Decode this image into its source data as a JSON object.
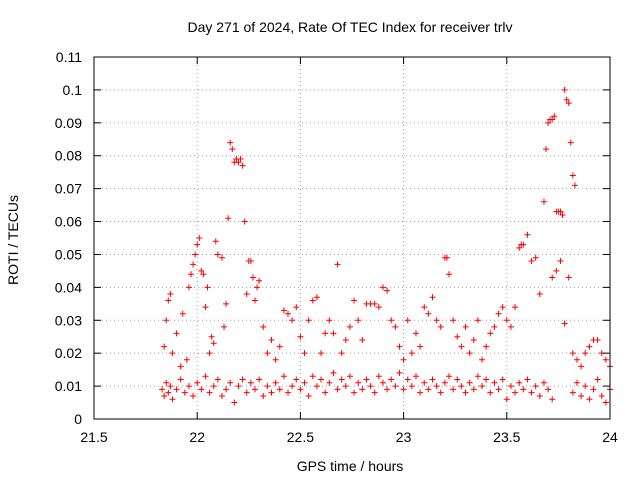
{
  "chart_data": {
    "type": "scatter",
    "title": "Day 271 of 2024, Rate Of TEC Index for receiver trlv",
    "xlabel": "GPS time / hours",
    "ylabel": "ROTI / TECUs",
    "xlim": [
      21.5,
      24
    ],
    "ylim": [
      0,
      0.11
    ],
    "x_ticks": [
      21.5,
      22,
      22.5,
      23,
      23.5,
      24
    ],
    "x_tick_labels": [
      "21.5",
      "22",
      "22.5",
      "23",
      "23.5",
      "24"
    ],
    "y_ticks": [
      0,
      0.01,
      0.02,
      0.03,
      0.04,
      0.05,
      0.06,
      0.07,
      0.08,
      0.09,
      0.1,
      0.11
    ],
    "y_tick_labels": [
      "0",
      "0.01",
      "0.02",
      "0.03",
      "0.04",
      "0.05",
      "0.06",
      "0.07",
      "0.08",
      "0.09",
      "0.1",
      "0.11"
    ],
    "grid": true,
    "marker": "+",
    "marker_color": "#ff0000",
    "series": [
      {
        "name": "ROTI",
        "points": [
          [
            21.83,
            0.009
          ],
          [
            21.84,
            0.007
          ],
          [
            21.85,
            0.011
          ],
          [
            21.86,
            0.008
          ],
          [
            21.87,
            0.01
          ],
          [
            21.88,
            0.006
          ],
          [
            21.9,
            0.009
          ],
          [
            21.92,
            0.012
          ],
          [
            21.94,
            0.008
          ],
          [
            21.96,
            0.01
          ],
          [
            21.98,
            0.007
          ],
          [
            22.0,
            0.011
          ],
          [
            22.02,
            0.009
          ],
          [
            22.04,
            0.013
          ],
          [
            22.06,
            0.008
          ],
          [
            22.08,
            0.01
          ],
          [
            22.1,
            0.012
          ],
          [
            22.12,
            0.007
          ],
          [
            22.14,
            0.009
          ],
          [
            22.16,
            0.011
          ],
          [
            22.18,
            0.005
          ],
          [
            22.2,
            0.01
          ],
          [
            22.22,
            0.012
          ],
          [
            22.24,
            0.008
          ],
          [
            22.26,
            0.011
          ],
          [
            22.28,
            0.009
          ],
          [
            22.3,
            0.012
          ],
          [
            22.32,
            0.007
          ],
          [
            22.34,
            0.01
          ],
          [
            22.36,
            0.008
          ],
          [
            22.38,
            0.011
          ],
          [
            22.4,
            0.009
          ],
          [
            22.42,
            0.013
          ],
          [
            22.44,
            0.008
          ],
          [
            22.46,
            0.01
          ],
          [
            22.48,
            0.012
          ],
          [
            22.5,
            0.009
          ],
          [
            22.52,
            0.011
          ],
          [
            22.54,
            0.007
          ],
          [
            22.56,
            0.013
          ],
          [
            22.58,
            0.01
          ],
          [
            22.6,
            0.012
          ],
          [
            22.62,
            0.008
          ],
          [
            22.64,
            0.011
          ],
          [
            22.66,
            0.014
          ],
          [
            22.68,
            0.009
          ],
          [
            22.7,
            0.012
          ],
          [
            22.72,
            0.01
          ],
          [
            22.74,
            0.013
          ],
          [
            22.76,
            0.008
          ],
          [
            22.78,
            0.011
          ],
          [
            22.8,
            0.009
          ],
          [
            22.82,
            0.012
          ],
          [
            22.84,
            0.01
          ],
          [
            22.86,
            0.008
          ],
          [
            22.88,
            0.013
          ],
          [
            22.9,
            0.011
          ],
          [
            22.92,
            0.009
          ],
          [
            22.94,
            0.012
          ],
          [
            22.96,
            0.01
          ],
          [
            22.98,
            0.014
          ],
          [
            23.0,
            0.009
          ],
          [
            23.02,
            0.012
          ],
          [
            23.04,
            0.01
          ],
          [
            23.06,
            0.013
          ],
          [
            23.08,
            0.008
          ],
          [
            23.1,
            0.011
          ],
          [
            23.12,
            0.009
          ],
          [
            23.14,
            0.012
          ],
          [
            23.16,
            0.01
          ],
          [
            23.18,
            0.008
          ],
          [
            23.2,
            0.011
          ],
          [
            23.22,
            0.013
          ],
          [
            23.24,
            0.009
          ],
          [
            23.26,
            0.012
          ],
          [
            23.28,
            0.01
          ],
          [
            23.3,
            0.008
          ],
          [
            23.32,
            0.011
          ],
          [
            23.34,
            0.009
          ],
          [
            23.36,
            0.013
          ],
          [
            23.38,
            0.01
          ],
          [
            23.4,
            0.012
          ],
          [
            23.42,
            0.008
          ],
          [
            23.44,
            0.011
          ],
          [
            23.46,
            0.009
          ],
          [
            23.48,
            0.012
          ],
          [
            23.5,
            0.006
          ],
          [
            23.52,
            0.01
          ],
          [
            23.54,
            0.008
          ],
          [
            23.56,
            0.011
          ],
          [
            23.58,
            0.009
          ],
          [
            23.6,
            0.012
          ],
          [
            23.62,
            0.008
          ],
          [
            23.64,
            0.01
          ],
          [
            23.66,
            0.007
          ],
          [
            23.68,
            0.011
          ],
          [
            23.7,
            0.009
          ],
          [
            23.72,
            0.006
          ],
          [
            23.82,
            0.008
          ],
          [
            23.84,
            0.011
          ],
          [
            23.86,
            0.007
          ],
          [
            23.88,
            0.01
          ],
          [
            23.9,
            0.006
          ],
          [
            23.92,
            0.009
          ],
          [
            23.94,
            0.012
          ],
          [
            23.96,
            0.007
          ],
          [
            23.98,
            0.005
          ],
          [
            24.0,
            0.009
          ],
          [
            21.84,
            0.022
          ],
          [
            21.85,
            0.03
          ],
          [
            21.86,
            0.036
          ],
          [
            21.87,
            0.038
          ],
          [
            21.88,
            0.02
          ],
          [
            21.9,
            0.026
          ],
          [
            21.92,
            0.016
          ],
          [
            21.93,
            0.032
          ],
          [
            21.95,
            0.018
          ],
          [
            21.96,
            0.04
          ],
          [
            21.97,
            0.044
          ],
          [
            21.98,
            0.047
          ],
          [
            21.99,
            0.05
          ],
          [
            22.0,
            0.053
          ],
          [
            22.01,
            0.055
          ],
          [
            22.02,
            0.045
          ],
          [
            22.03,
            0.044
          ],
          [
            22.04,
            0.034
          ],
          [
            22.05,
            0.04
          ],
          [
            22.06,
            0.02
          ],
          [
            22.07,
            0.025
          ],
          [
            22.08,
            0.023
          ],
          [
            22.09,
            0.054
          ],
          [
            22.1,
            0.05
          ],
          [
            22.12,
            0.049
          ],
          [
            22.13,
            0.028
          ],
          [
            22.14,
            0.035
          ],
          [
            22.15,
            0.061
          ],
          [
            22.16,
            0.084
          ],
          [
            22.17,
            0.082
          ],
          [
            22.18,
            0.078
          ],
          [
            22.19,
            0.079
          ],
          [
            22.2,
            0.078
          ],
          [
            22.21,
            0.079
          ],
          [
            22.22,
            0.077
          ],
          [
            22.23,
            0.06
          ],
          [
            22.24,
            0.038
          ],
          [
            22.25,
            0.048
          ],
          [
            22.26,
            0.048
          ],
          [
            22.27,
            0.043
          ],
          [
            22.28,
            0.036
          ],
          [
            22.29,
            0.04
          ],
          [
            22.3,
            0.042
          ],
          [
            22.32,
            0.028
          ],
          [
            22.34,
            0.02
          ],
          [
            22.36,
            0.024
          ],
          [
            22.38,
            0.018
          ],
          [
            22.4,
            0.022
          ],
          [
            22.42,
            0.033
          ],
          [
            22.44,
            0.032
          ],
          [
            22.46,
            0.03
          ],
          [
            22.48,
            0.034
          ],
          [
            22.5,
            0.025
          ],
          [
            22.52,
            0.02
          ],
          [
            22.54,
            0.03
          ],
          [
            22.56,
            0.036
          ],
          [
            22.58,
            0.037
          ],
          [
            22.6,
            0.02
          ],
          [
            22.62,
            0.026
          ],
          [
            22.64,
            0.03
          ],
          [
            22.66,
            0.026
          ],
          [
            22.68,
            0.047
          ],
          [
            22.7,
            0.02
          ],
          [
            22.72,
            0.024
          ],
          [
            22.74,
            0.028
          ],
          [
            22.76,
            0.036
          ],
          [
            22.78,
            0.03
          ],
          [
            22.8,
            0.024
          ],
          [
            22.82,
            0.035
          ],
          [
            22.84,
            0.035
          ],
          [
            22.86,
            0.035
          ],
          [
            22.88,
            0.034
          ],
          [
            22.9,
            0.04
          ],
          [
            22.92,
            0.039
          ],
          [
            22.94,
            0.03
          ],
          [
            22.96,
            0.028
          ],
          [
            22.98,
            0.022
          ],
          [
            23.0,
            0.018
          ],
          [
            23.02,
            0.03
          ],
          [
            23.04,
            0.02
          ],
          [
            23.06,
            0.026
          ],
          [
            23.08,
            0.022
          ],
          [
            23.1,
            0.034
          ],
          [
            23.12,
            0.032
          ],
          [
            23.14,
            0.037
          ],
          [
            23.16,
            0.03
          ],
          [
            23.18,
            0.028
          ],
          [
            23.2,
            0.049
          ],
          [
            23.21,
            0.049
          ],
          [
            23.22,
            0.044
          ],
          [
            23.24,
            0.03
          ],
          [
            23.26,
            0.025
          ],
          [
            23.28,
            0.022
          ],
          [
            23.3,
            0.028
          ],
          [
            23.32,
            0.02
          ],
          [
            23.34,
            0.024
          ],
          [
            23.36,
            0.03
          ],
          [
            23.38,
            0.018
          ],
          [
            23.4,
            0.022
          ],
          [
            23.42,
            0.026
          ],
          [
            23.44,
            0.028
          ],
          [
            23.46,
            0.032
          ],
          [
            23.48,
            0.034
          ],
          [
            23.5,
            0.03
          ],
          [
            23.52,
            0.028
          ],
          [
            23.54,
            0.034
          ],
          [
            23.56,
            0.052
          ],
          [
            23.57,
            0.053
          ],
          [
            23.58,
            0.053
          ],
          [
            23.6,
            0.056
          ],
          [
            23.62,
            0.048
          ],
          [
            23.64,
            0.049
          ],
          [
            23.66,
            0.038
          ],
          [
            23.68,
            0.066
          ],
          [
            23.69,
            0.082
          ],
          [
            23.7,
            0.09
          ],
          [
            23.71,
            0.091
          ],
          [
            23.72,
            0.091
          ],
          [
            23.73,
            0.092
          ],
          [
            23.74,
            0.063
          ],
          [
            23.75,
            0.063
          ],
          [
            23.76,
            0.063
          ],
          [
            23.77,
            0.062
          ],
          [
            23.78,
            0.1
          ],
          [
            23.79,
            0.097
          ],
          [
            23.8,
            0.096
          ],
          [
            23.81,
            0.084
          ],
          [
            23.82,
            0.074
          ],
          [
            23.83,
            0.071
          ],
          [
            23.72,
            0.043
          ],
          [
            23.74,
            0.045
          ],
          [
            23.76,
            0.048
          ],
          [
            23.78,
            0.029
          ],
          [
            23.8,
            0.043
          ],
          [
            23.82,
            0.02
          ],
          [
            23.84,
            0.018
          ],
          [
            23.86,
            0.016
          ],
          [
            23.88,
            0.02
          ],
          [
            23.9,
            0.022
          ],
          [
            23.92,
            0.024
          ],
          [
            23.94,
            0.024
          ],
          [
            23.96,
            0.02
          ],
          [
            23.98,
            0.018
          ],
          [
            24.0,
            0.016
          ]
        ]
      }
    ]
  }
}
